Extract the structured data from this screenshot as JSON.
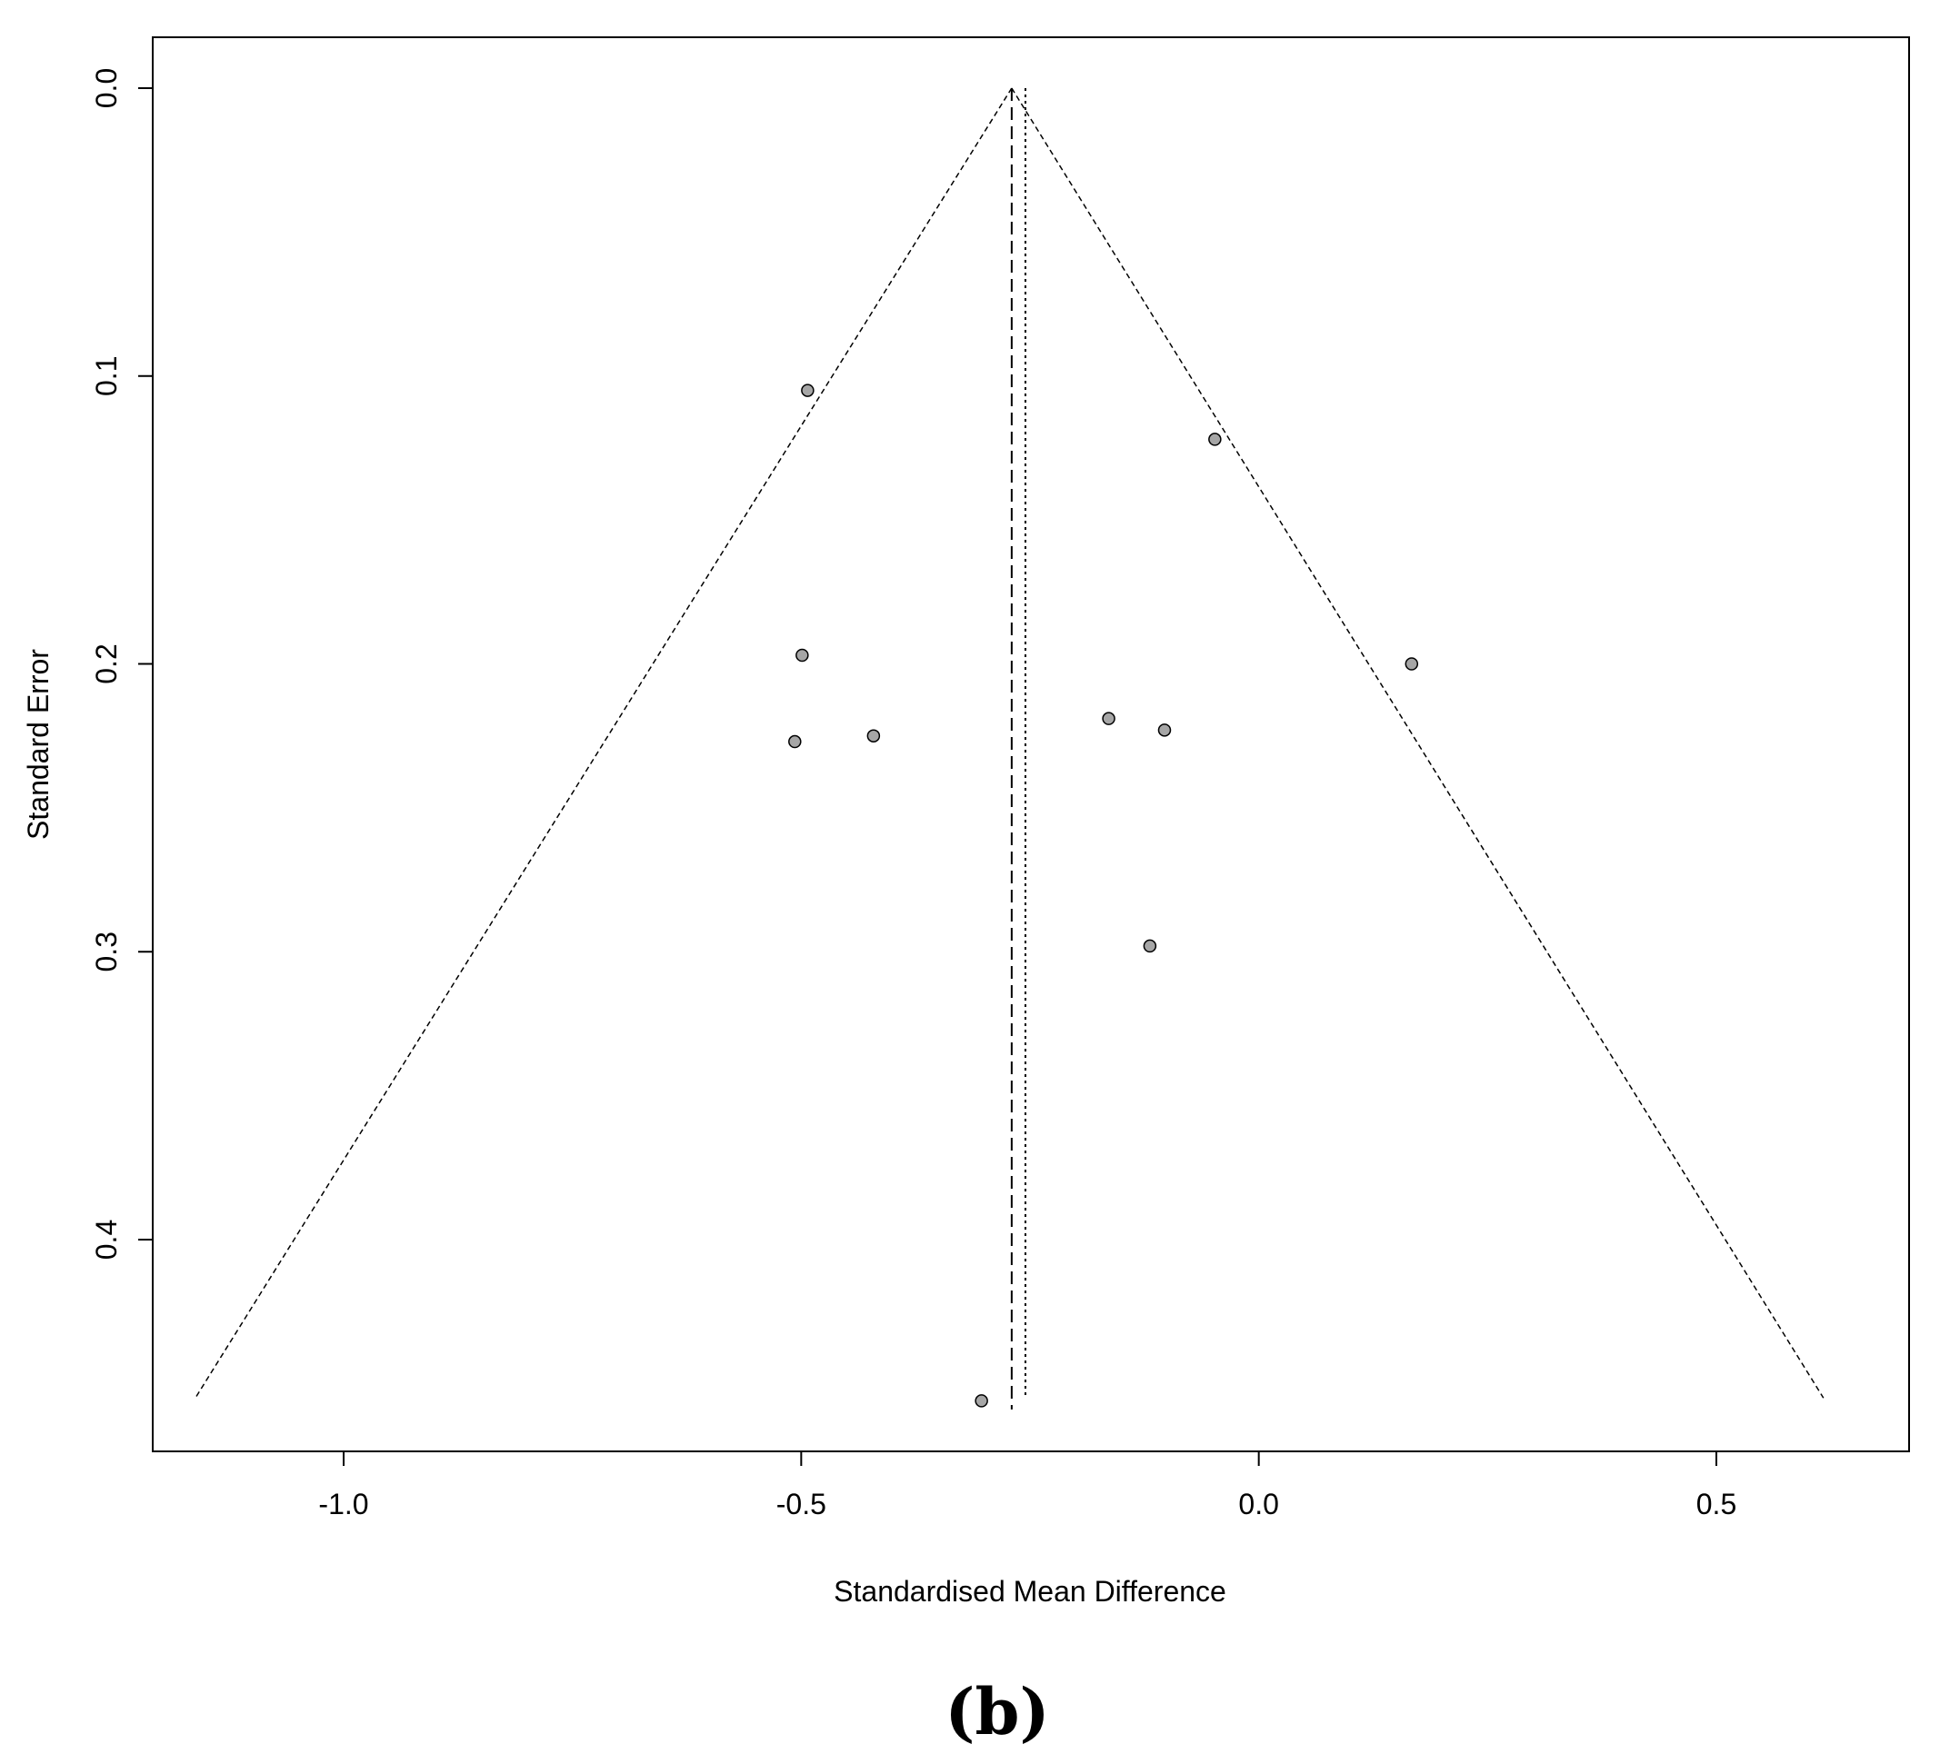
{
  "chart_data": {
    "type": "scatter",
    "subtype": "funnel-plot",
    "title": "",
    "xlabel": "Standardised Mean Difference",
    "ylabel": "Standard Error",
    "xlim": [
      -1.22,
      0.7
    ],
    "ylim": [
      0.0,
      0.47
    ],
    "y_axis_reversed": true,
    "x_ticks": [
      -1.0,
      -0.5,
      0.0,
      0.5
    ],
    "x_tick_labels": [
      "-1.0",
      "-0.5",
      "0.0",
      "0.5"
    ],
    "y_ticks": [
      0.0,
      0.1,
      0.2,
      0.3,
      0.4
    ],
    "y_tick_labels": [
      "0.0",
      "0.1",
      "0.2",
      "0.3",
      "0.4"
    ],
    "grid": false,
    "points": [
      {
        "x": -0.493,
        "y": 0.105
      },
      {
        "x": -0.048,
        "y": 0.122
      },
      {
        "x": -0.499,
        "y": 0.197
      },
      {
        "x": 0.167,
        "y": 0.2
      },
      {
        "x": -0.164,
        "y": 0.219
      },
      {
        "x": -0.103,
        "y": 0.223
      },
      {
        "x": -0.421,
        "y": 0.225
      },
      {
        "x": -0.507,
        "y": 0.227
      },
      {
        "x": -0.119,
        "y": 0.298
      },
      {
        "x": -0.303,
        "y": 0.456
      }
    ],
    "pooled_estimate_dashed": -0.27,
    "pooled_estimate_dotted": -0.255,
    "funnel_apex": {
      "x": -0.27,
      "y": 0.0
    },
    "funnel_bottom": {
      "y": 0.455,
      "x_left": -1.162,
      "x_right": 0.617
    },
    "point_fill": "#a6a6a6",
    "line_color": "#000000",
    "panel_label": "(b)"
  }
}
